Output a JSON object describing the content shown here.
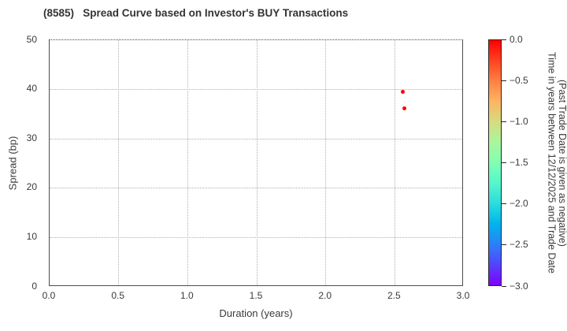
{
  "title": "(8585)   Spread Curve based on Investor's BUY Transactions",
  "chart_data": {
    "type": "scatter",
    "title": "(8585)   Spread Curve based on Investor's BUY Transactions",
    "xlabel": "Duration (years)",
    "ylabel": "Spread (bp)",
    "xlim": [
      0.0,
      3.0
    ],
    "ylim": [
      0,
      50
    ],
    "grid": true,
    "grid_style": "dotted",
    "xticks": [
      {
        "value": 0.0,
        "label": "0.0"
      },
      {
        "value": 0.5,
        "label": "0.5"
      },
      {
        "value": 1.0,
        "label": "1.0"
      },
      {
        "value": 1.5,
        "label": "1.5"
      },
      {
        "value": 2.0,
        "label": "2.0"
      },
      {
        "value": 2.5,
        "label": "2.5"
      },
      {
        "value": 3.0,
        "label": "3.0"
      }
    ],
    "yticks": [
      {
        "value": 0,
        "label": "0"
      },
      {
        "value": 10,
        "label": "10"
      },
      {
        "value": 20,
        "label": "20"
      },
      {
        "value": 30,
        "label": "30"
      },
      {
        "value": 40,
        "label": "40"
      },
      {
        "value": 50,
        "label": "50"
      }
    ],
    "points": [
      {
        "duration_years": 2.56,
        "spread_bp": 39.5,
        "time_years": 0.0,
        "color": "#ff0000"
      },
      {
        "duration_years": 2.57,
        "spread_bp": 36.2,
        "time_years": 0.0,
        "color": "#ff0000"
      }
    ],
    "colorbar": {
      "label_line1": "Time in years between 12/12/2025 and Trade Date",
      "label_line2": "(Past Trade Date is given as negative)",
      "vmax": 0.0,
      "vmin": -3.0,
      "colormap": "rainbow",
      "ticks": [
        {
          "value": 0.0,
          "label": "0.0"
        },
        {
          "value": -0.5,
          "label": "−0.5"
        },
        {
          "value": -1.0,
          "label": "−1.0"
        },
        {
          "value": -1.5,
          "label": "−1.5"
        },
        {
          "value": -2.0,
          "label": "−2.0"
        },
        {
          "value": -2.5,
          "label": "−2.5"
        },
        {
          "value": -3.0,
          "label": "−3.0"
        }
      ],
      "gradient_stops": [
        {
          "value": 0.0,
          "color": "#ff0000"
        },
        {
          "value": -0.25,
          "color": "#ff4221"
        },
        {
          "value": -0.5,
          "color": "#ff8042"
        },
        {
          "value": -0.75,
          "color": "#ffb461"
        },
        {
          "value": -1.0,
          "color": "#d5dd80"
        },
        {
          "value": -1.25,
          "color": "#aaf69b"
        },
        {
          "value": -1.5,
          "color": "#80ffb4"
        },
        {
          "value": -1.75,
          "color": "#55f6ca"
        },
        {
          "value": -2.0,
          "color": "#2bdddd"
        },
        {
          "value": -2.25,
          "color": "#00b4ec"
        },
        {
          "value": -2.5,
          "color": "#2b80f6"
        },
        {
          "value": -2.75,
          "color": "#5542fd"
        },
        {
          "value": -3.0,
          "color": "#8000ff"
        }
      ]
    }
  },
  "colors": {
    "background": "#ffffff",
    "spine": "#4d4d4d",
    "grid": "#b0b0b0",
    "tick_label": "#3a3a3a",
    "title": "#333333",
    "point": "#ff0000"
  }
}
